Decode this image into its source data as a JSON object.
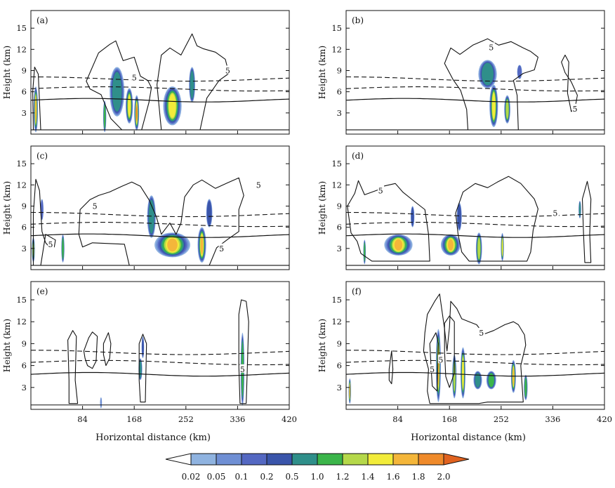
{
  "figure": {
    "xlabel": "Horizontal distance (km)",
    "ylabel": "Height (km)",
    "x_ticks": [
      84,
      168,
      252,
      336,
      420
    ],
    "y_ticks": [
      3,
      6,
      9,
      12,
      15
    ],
    "contour_label": "5"
  },
  "colorbar": {
    "levels": [
      "0.02",
      "0.05",
      "0.1",
      "0.2",
      "0.5",
      "1.0",
      "1.2",
      "1.4",
      "1.6",
      "1.8",
      "2.0"
    ],
    "colors": [
      "#ffffff",
      "#8fb3e0",
      "#6f8fd4",
      "#5468c2",
      "#3a55aa",
      "#2f8f8a",
      "#3bb54a",
      "#b5d84a",
      "#f2ec3a",
      "#f4b63a",
      "#ef8a2a",
      "#e0621f"
    ]
  },
  "chart_data": [
    {
      "type": "heatmap",
      "panel": "(a)",
      "xlim": [
        0,
        420
      ],
      "ylim": [
        0,
        17.5
      ],
      "show_x_ticklabels": false,
      "show_xlabel": false,
      "freezing_level_km": 4.8,
      "dashed_levels_km": [
        6.4,
        7.8
      ],
      "contour_5_labels": [
        [
          168,
          8.0
        ],
        [
          320,
          9.0
        ]
      ],
      "cells": [
        {
          "x": 8,
          "z": 3.5,
          "w": 7,
          "h": 6.5,
          "peak": 1.6
        },
        {
          "x": 120,
          "z": 2.5,
          "w": 5,
          "h": 4.5,
          "peak": 1.0
        },
        {
          "x": 140,
          "z": 6.0,
          "w": 24,
          "h": 7.0,
          "peak": 0.5
        },
        {
          "x": 160,
          "z": 4.0,
          "w": 12,
          "h": 5.0,
          "peak": 1.4
        },
        {
          "x": 172,
          "z": 3.0,
          "w": 8,
          "h": 5.0,
          "peak": 2.0
        },
        {
          "x": 230,
          "z": 4.0,
          "w": 30,
          "h": 5.5,
          "peak": 1.4
        },
        {
          "x": 262,
          "z": 7.0,
          "w": 10,
          "h": 5.0,
          "peak": 0.5
        }
      ]
    },
    {
      "type": "heatmap",
      "panel": "(b)",
      "xlim": [
        0,
        420
      ],
      "ylim": [
        0,
        17.5
      ],
      "show_x_ticklabels": false,
      "show_xlabel": false,
      "freezing_level_km": 4.8,
      "dashed_levels_km": [
        6.4,
        7.8
      ],
      "contour_5_labels": [
        [
          236,
          12.3
        ],
        [
          372,
          3.6
        ]
      ],
      "cells": [
        {
          "x": 230,
          "z": 8.5,
          "w": 30,
          "h": 4.0,
          "peak": 0.5
        },
        {
          "x": 240,
          "z": 4.0,
          "w": 14,
          "h": 6.0,
          "peak": 1.4
        },
        {
          "x": 262,
          "z": 3.5,
          "w": 10,
          "h": 4.0,
          "peak": 1.2
        },
        {
          "x": 282,
          "z": 8.8,
          "w": 8,
          "h": 2.0,
          "peak": 0.1
        }
      ]
    },
    {
      "type": "heatmap",
      "panel": "(c)",
      "xlim": [
        0,
        420
      ],
      "ylim": [
        0,
        17.5
      ],
      "show_x_ticklabels": false,
      "show_xlabel": false,
      "freezing_level_km": 4.8,
      "dashed_levels_km": [
        6.4,
        7.8
      ],
      "contour_5_labels": [
        [
          104,
          9.0
        ],
        [
          370,
          12.0
        ],
        [
          32,
          3.6
        ],
        [
          310,
          3.0
        ]
      ],
      "cells": [
        {
          "x": 4,
          "z": 2.8,
          "w": 5,
          "h": 3.5,
          "peak": 1.4
        },
        {
          "x": 18,
          "z": 8.5,
          "w": 5,
          "h": 3.0,
          "peak": 0.1
        },
        {
          "x": 52,
          "z": 3.0,
          "w": 5,
          "h": 4.0,
          "peak": 1.0
        },
        {
          "x": 196,
          "z": 7.5,
          "w": 14,
          "h": 6.0,
          "peak": 0.5
        },
        {
          "x": 230,
          "z": 3.5,
          "w": 58,
          "h": 3.5,
          "peak": 1.6
        },
        {
          "x": 278,
          "z": 3.5,
          "w": 14,
          "h": 5.0,
          "peak": 1.6
        },
        {
          "x": 290,
          "z": 8.0,
          "w": 10,
          "h": 4.0,
          "peak": 0.2
        }
      ]
    },
    {
      "type": "heatmap",
      "panel": "(d)",
      "xlim": [
        0,
        420
      ],
      "ylim": [
        0,
        17.5
      ],
      "show_x_ticklabels": false,
      "show_xlabel": false,
      "freezing_level_km": 4.8,
      "dashed_levels_km": [
        6.4,
        7.8
      ],
      "contour_5_labels": [
        [
          56,
          11.2
        ],
        [
          340,
          8.0
        ]
      ],
      "cells": [
        {
          "x": 30,
          "z": 2.5,
          "w": 4,
          "h": 3.5,
          "peak": 1.0
        },
        {
          "x": 85,
          "z": 3.5,
          "w": 46,
          "h": 3.0,
          "peak": 1.6
        },
        {
          "x": 108,
          "z": 7.5,
          "w": 6,
          "h": 3.0,
          "peak": 0.2
        },
        {
          "x": 170,
          "z": 3.5,
          "w": 32,
          "h": 3.0,
          "peak": 1.6
        },
        {
          "x": 184,
          "z": 7.5,
          "w": 8,
          "h": 4.0,
          "peak": 0.2
        },
        {
          "x": 216,
          "z": 3.0,
          "w": 10,
          "h": 4.5,
          "peak": 1.2
        },
        {
          "x": 254,
          "z": 3.2,
          "w": 5,
          "h": 4.0,
          "peak": 1.4
        },
        {
          "x": 380,
          "z": 8.5,
          "w": 4,
          "h": 2.5,
          "peak": 0.5
        }
      ]
    },
    {
      "type": "heatmap",
      "panel": "(e)",
      "xlim": [
        0,
        420
      ],
      "ylim": [
        0,
        17.5
      ],
      "show_x_ticklabels": true,
      "show_xlabel": true,
      "freezing_level_km": 4.8,
      "dashed_levels_km": [
        6.4,
        7.8
      ],
      "contour_5_labels": [
        [
          344,
          5.5
        ]
      ],
      "cells": [
        {
          "x": 114,
          "z": 0.9,
          "w": 3,
          "h": 1.5,
          "peak": 0.05
        },
        {
          "x": 178,
          "z": 5.5,
          "w": 6,
          "h": 3.0,
          "peak": 0.5
        },
        {
          "x": 182,
          "z": 8.5,
          "w": 4,
          "h": 3.0,
          "peak": 0.2
        },
        {
          "x": 344,
          "z": 5.5,
          "w": 6,
          "h": 10.0,
          "peak": 1.0
        }
      ]
    },
    {
      "type": "heatmap",
      "panel": "(f)",
      "xlim": [
        0,
        420
      ],
      "ylim": [
        0,
        17.5
      ],
      "show_x_ticklabels": true,
      "show_xlabel": true,
      "freezing_level_km": 4.8,
      "dashed_levels_km": [
        6.4,
        7.8
      ],
      "contour_5_labels": [
        [
          140,
          5.5
        ],
        [
          154,
          6.8
        ],
        [
          220,
          10.5
        ]
      ],
      "cells": [
        {
          "x": 6,
          "z": 2.5,
          "w": 4,
          "h": 3.5,
          "peak": 1.8
        },
        {
          "x": 150,
          "z": 6.0,
          "w": 8,
          "h": 10.0,
          "peak": 1.6
        },
        {
          "x": 176,
          "z": 4.5,
          "w": 7,
          "h": 6.0,
          "peak": 1.2
        },
        {
          "x": 190,
          "z": 5.0,
          "w": 8,
          "h": 7.0,
          "peak": 1.4
        },
        {
          "x": 214,
          "z": 4.0,
          "w": 14,
          "h": 2.5,
          "peak": 0.5
        },
        {
          "x": 236,
          "z": 4.0,
          "w": 16,
          "h": 2.5,
          "peak": 1.0
        },
        {
          "x": 272,
          "z": 4.5,
          "w": 8,
          "h": 4.5,
          "peak": 1.6
        },
        {
          "x": 292,
          "z": 3.0,
          "w": 6,
          "h": 3.5,
          "peak": 1.0
        }
      ]
    }
  ]
}
